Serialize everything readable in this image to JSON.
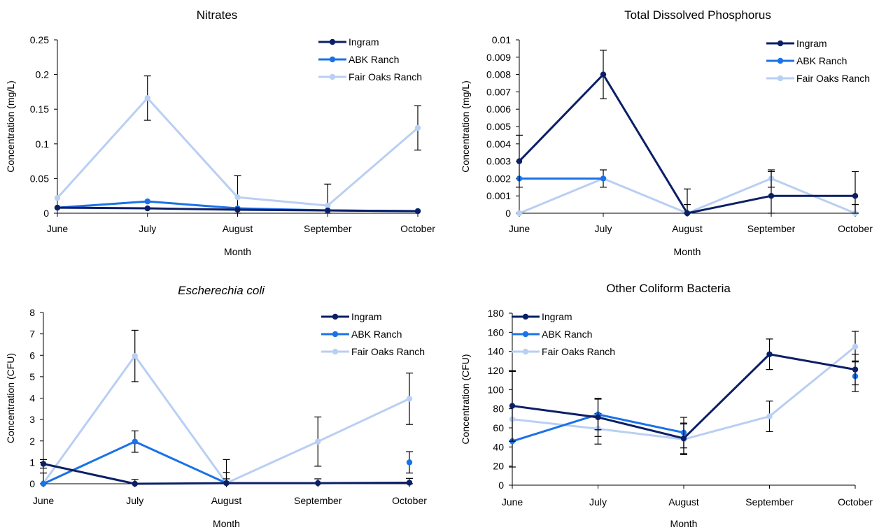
{
  "colors": {
    "Ingram": "#0b1f66",
    "ABK Ranch": "#1a72e8",
    "Fair Oaks Ranch": "#b9cff3"
  },
  "chart_data": [
    {
      "type": "line",
      "title": "Nitrates",
      "title_italic": false,
      "xlabel": "Month",
      "ylabel": "Concentration (mg/L)",
      "categories": [
        "June",
        "July",
        "August",
        "September",
        "October"
      ],
      "ylim": [
        0,
        0.25
      ],
      "yticks": [
        "0",
        "0.05",
        "0.1",
        "0.15",
        "0.2",
        "0.25"
      ],
      "legend": "top-right",
      "series": [
        {
          "name": "Ingram",
          "values": [
            0.008,
            0.007,
            0.005,
            0.004,
            0.003
          ],
          "errors": [
            null,
            null,
            null,
            null,
            null
          ]
        },
        {
          "name": "ABK Ranch",
          "values": [
            0.008,
            0.017,
            0.007,
            0.004,
            0.003
          ],
          "errors": [
            null,
            null,
            null,
            null,
            null
          ]
        },
        {
          "name": "Fair Oaks Ranch",
          "values": [
            0.022,
            0.166,
            0.023,
            0.011,
            0.123
          ],
          "errors": [
            null,
            0.032,
            0.031,
            0.031,
            0.032
          ]
        }
      ]
    },
    {
      "type": "line",
      "title": "Total Dissolved Phosphorus",
      "title_italic": false,
      "xlabel": "Month",
      "ylabel": "Concentration (mg/L)",
      "categories": [
        "June",
        "July",
        "August",
        "September",
        "October"
      ],
      "ylim": [
        0,
        0.01
      ],
      "yticks": [
        "0",
        "0.001",
        "0.002",
        "0.003",
        "0.004",
        "0.005",
        "0.006",
        "0.007",
        "0.008",
        "0.009",
        "0.01"
      ],
      "legend": "top-right",
      "series": [
        {
          "name": "Ingram",
          "values": [
            0.003,
            0.008,
            0,
            0.001,
            0.001
          ],
          "errors": [
            0.0015,
            0.0014,
            0.0014,
            0.0014,
            0.0014
          ]
        },
        {
          "name": "ABK Ranch",
          "values": [
            0.002,
            0.002,
            null,
            null,
            null
          ],
          "errors": [
            null,
            null,
            null,
            null,
            null
          ]
        },
        {
          "name": "Fair Oaks Ranch",
          "values": [
            0,
            0.002,
            0,
            0.002,
            0
          ],
          "errors": [
            null,
            0.0005,
            0.0005,
            0.0005,
            0.0005
          ]
        }
      ]
    },
    {
      "type": "line",
      "title": "Escherechia coli",
      "title_italic": true,
      "xlabel": "Month",
      "ylabel": "Concentration (CFU)",
      "categories": [
        "June",
        "July",
        "August",
        "September",
        "October"
      ],
      "ylim": [
        0,
        8
      ],
      "yticks": [
        "0",
        "1",
        "2",
        "3",
        "4",
        "5",
        "6",
        "7",
        "8"
      ],
      "legend": "top-right",
      "series": [
        {
          "name": "Ingram",
          "values": [
            0.93,
            0,
            0.03,
            0.03,
            0.05
          ],
          "errors": [
            0.2,
            0.2,
            0.2,
            0.2,
            0.2
          ]
        },
        {
          "name": "ABK Ranch",
          "values": [
            0,
            1.97,
            0.03,
            null,
            1.0
          ],
          "errors": [
            0.5,
            0.5,
            0.5,
            null,
            0.5
          ]
        },
        {
          "name": "Fair Oaks Ranch",
          "values": [
            0.03,
            5.97,
            0.03,
            1.97,
            3.97
          ],
          "errors": [
            null,
            1.2,
            1.1,
            1.15,
            1.2
          ]
        }
      ]
    },
    {
      "type": "line",
      "title": "Other Coliform Bacteria",
      "title_italic": false,
      "xlabel": "Month",
      "ylabel": "Concentration (CFU)",
      "categories": [
        "June",
        "July",
        "August",
        "September",
        "October"
      ],
      "ylim": [
        0,
        180
      ],
      "yticks": [
        "0",
        "20",
        "40",
        "60",
        "80",
        "100",
        "120",
        "140",
        "160",
        "180"
      ],
      "legend": "top-left",
      "series": [
        {
          "name": "Ingram",
          "values": [
            83,
            71,
            49,
            137,
            121
          ],
          "errors": [
            37,
            20,
            16,
            16,
            16
          ]
        },
        {
          "name": "ABK Ranch",
          "values": [
            46,
            74,
            55,
            null,
            114
          ],
          "errors": [
            null,
            16,
            16,
            null,
            16
          ]
        },
        {
          "name": "Fair Oaks Ranch",
          "values": [
            69,
            59,
            48,
            72,
            145
          ],
          "errors": [
            50,
            16,
            16,
            16,
            16
          ]
        }
      ]
    }
  ]
}
